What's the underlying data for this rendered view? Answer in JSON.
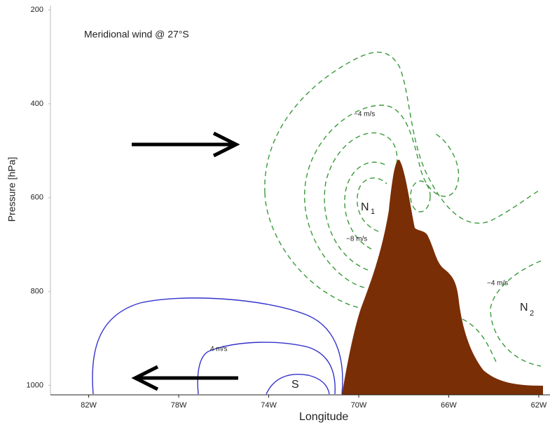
{
  "chart_data": {
    "type": "contour",
    "title": "Meridional wind @ 27°S",
    "x_label": "Longitude",
    "y_label": "Pressure [hPa]",
    "xlim": [
      -83.7,
      -61.5
    ],
    "xticks": [
      {
        "value": -82,
        "label": "82W"
      },
      {
        "value": -78,
        "label": "78W"
      },
      {
        "value": -74,
        "label": "74W"
      },
      {
        "value": -70,
        "label": "70W"
      },
      {
        "value": -66,
        "label": "66W"
      },
      {
        "value": -62,
        "label": "62W"
      }
    ],
    "ylim": [
      1020,
      200
    ],
    "yticks": [
      200,
      400,
      600,
      800,
      1000
    ],
    "annotations": [
      {
        "text": "−4 m/s"
      },
      {
        "text": "−8 m/s"
      },
      {
        "text": "−4 m/s"
      },
      {
        "text": "4 m/s"
      },
      {
        "text": "N",
        "sub": "1"
      },
      {
        "text": "N",
        "sub": "2"
      },
      {
        "text": "S"
      }
    ]
  }
}
